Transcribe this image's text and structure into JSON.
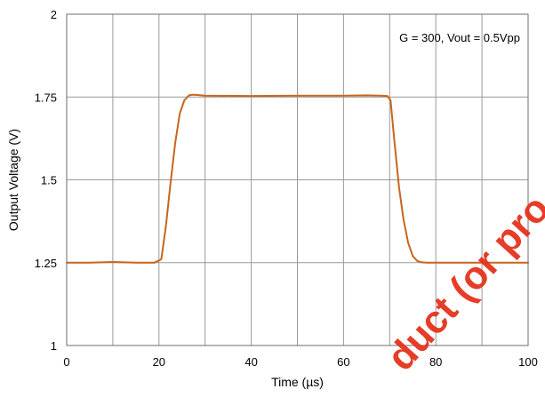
{
  "chart_data": {
    "type": "line",
    "title": "",
    "xlabel": "Time (µs)",
    "ylabel": "Output Voltage (V)",
    "xlim": [
      0,
      100
    ],
    "ylim": [
      1,
      2
    ],
    "xticks": [
      0,
      20,
      40,
      60,
      80,
      100
    ],
    "yticks": [
      1,
      1.25,
      1.5,
      1.75,
      2
    ],
    "xtick_labels": [
      "0",
      "20",
      "40",
      "60",
      "80",
      "100"
    ],
    "ytick_labels": [
      "1",
      "1.25",
      "1.5",
      "1.75",
      "2"
    ],
    "grid": true,
    "annotation": "G = 300, Vout = 0.5Vpp",
    "series_color": "#c8651b",
    "series": [
      {
        "x": [
          0,
          5,
          10,
          15,
          19,
          20.5,
          21.5,
          22.5,
          23.5,
          24.5,
          25.5,
          26.5,
          27.5,
          30,
          40,
          50,
          60,
          65,
          68,
          69.5,
          70.2,
          71,
          72,
          73,
          74,
          75,
          76,
          77,
          78,
          80,
          90,
          100
        ],
        "y": [
          1.25,
          1.25,
          1.252,
          1.25,
          1.25,
          1.26,
          1.36,
          1.49,
          1.61,
          1.7,
          1.74,
          1.755,
          1.757,
          1.754,
          1.753,
          1.754,
          1.754,
          1.755,
          1.754,
          1.753,
          1.74,
          1.62,
          1.48,
          1.38,
          1.31,
          1.27,
          1.255,
          1.251,
          1.25,
          1.25,
          1.25,
          1.25
        ]
      }
    ]
  },
  "watermark": {
    "text": "duct (or pro et are n ot",
    "color": "#e4331d"
  }
}
